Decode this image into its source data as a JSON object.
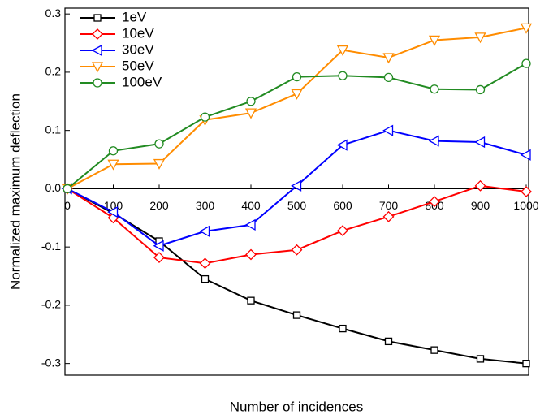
{
  "chart_data": {
    "type": "line",
    "x_label": "Number of incidences",
    "y_label": "Normalized maximum deflection",
    "x": [
      0,
      100,
      200,
      300,
      400,
      500,
      600,
      700,
      800,
      900,
      1000
    ],
    "xlim": [
      0,
      1000
    ],
    "xticks": [
      0,
      100,
      200,
      300,
      400,
      500,
      600,
      700,
      800,
      900,
      1000
    ],
    "ylim": [
      -0.32,
      0.31
    ],
    "yticks": [
      0.3,
      0.2,
      0.1,
      {
        "value": 0,
        "label": "0.0"
      },
      -0.1,
      -0.2,
      -0.3
    ],
    "legend": "top-left",
    "series": [
      {
        "name": "1eV",
        "color": "#000000",
        "marker": "square",
        "values": [
          0,
          -0.042,
          -0.09,
          -0.155,
          -0.192,
          -0.217,
          -0.24,
          -0.262,
          -0.277,
          -0.292,
          -0.3
        ]
      },
      {
        "name": "10eV",
        "color": "#ff0000",
        "marker": "diamond",
        "values": [
          0,
          -0.05,
          -0.118,
          -0.128,
          -0.113,
          -0.105,
          -0.072,
          -0.048,
          -0.022,
          0.005,
          -0.005
        ]
      },
      {
        "name": "30eV",
        "color": "#0000ff",
        "marker": "triangle-left",
        "values": [
          0,
          -0.04,
          -0.098,
          -0.073,
          -0.062,
          0.005,
          0.075,
          0.1,
          0.082,
          0.08,
          0.058
        ]
      },
      {
        "name": "50eV",
        "color": "#ff8c00",
        "marker": "triangle-down",
        "values": [
          0,
          0.042,
          0.043,
          0.118,
          0.13,
          0.163,
          0.238,
          0.225,
          0.255,
          0.26,
          0.276
        ]
      },
      {
        "name": "100eV",
        "color": "#228b22",
        "marker": "circle",
        "values": [
          0,
          0.065,
          0.077,
          0.123,
          0.15,
          0.192,
          0.194,
          0.191,
          0.171,
          0.17,
          0.215
        ]
      }
    ]
  }
}
